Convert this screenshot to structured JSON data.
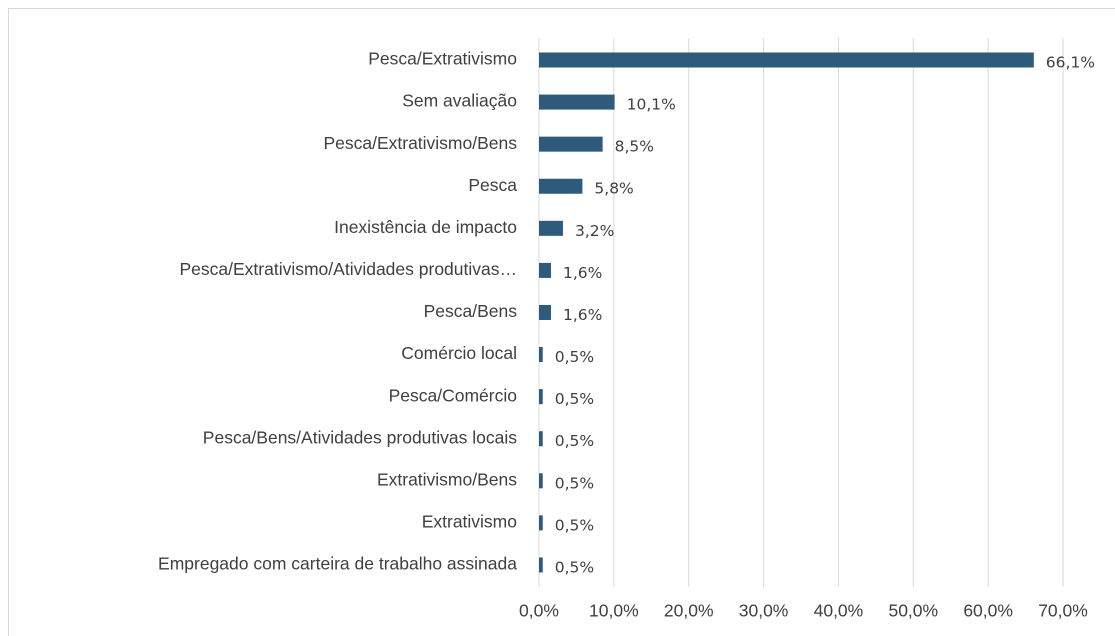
{
  "chart_data": {
    "type": "bar",
    "orientation": "horizontal",
    "categories": [
      "Pesca/Extrativismo",
      "Sem avaliação",
      "Pesca/Extrativismo/Bens",
      "Pesca",
      "Inexistência de impacto",
      "Pesca/Extrativismo/Atividades produtivas…",
      "Pesca/Bens",
      "Comércio local",
      "Pesca/Comércio",
      "Pesca/Bens/Atividades produtivas locais",
      "Extrativismo/Bens",
      "Extrativismo",
      "Empregado com carteira de trabalho assinada"
    ],
    "values": [
      66.1,
      10.1,
      8.5,
      5.8,
      3.2,
      1.6,
      1.6,
      0.5,
      0.5,
      0.5,
      0.5,
      0.5,
      0.5
    ],
    "value_labels": [
      "66,1%",
      "10,1%",
      "8,5%",
      "5,8%",
      "3,2%",
      "1,6%",
      "1,6%",
      "0,5%",
      "0,5%",
      "0,5%",
      "0,5%",
      "0,5%",
      "0,5%"
    ],
    "color": "#2e5a7c",
    "xlim": [
      0,
      70
    ],
    "xticks": [
      {
        "value": 0,
        "label": "0,0%"
      },
      {
        "value": 10,
        "label": "10,0%"
      },
      {
        "value": 20,
        "label": "20,0%"
      },
      {
        "value": 30,
        "label": "30,0%"
      },
      {
        "value": 40,
        "label": "40,0%"
      },
      {
        "value": 50,
        "label": "50,0%"
      },
      {
        "value": 60,
        "label": "60,0%"
      },
      {
        "value": 70,
        "label": "70,0%"
      }
    ],
    "grid": true
  }
}
